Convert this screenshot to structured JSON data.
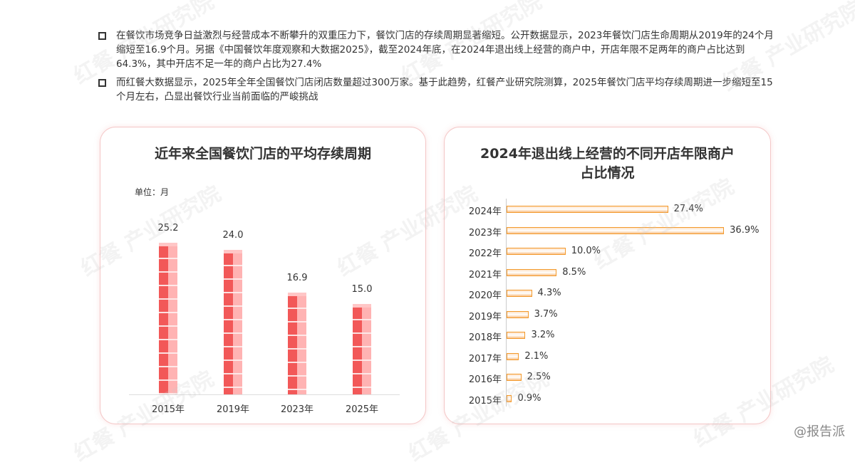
{
  "paragraphs": [
    "在餐饮市场竞争日益激烈与经营成本不断攀升的双重压力下，餐饮门店的存续周期显著缩短。公开数据显示，2023年餐饮门店生命周期从2019年的24个月缩短至16.9个月。另据《中国餐饮年度观察和大数据2025》，截至2024年底，在2024年退出线上经营的商户中，开店年限不足两年的商户占比达到64.3%，其中开店不足一年的商户占比为27.4%",
    "而红餐大数据显示，2025年全年全国餐饮门店闭店数量超过300万家。基于此趋势，红餐产业研究院测算，2025年餐饮门店平均存续周期进一步缩短至15个月左右，凸显出餐饮行业当前面临的严峻挑战"
  ],
  "watermark": "红餐 产业研究院",
  "source_badge": "@报告派",
  "chart_data": [
    {
      "type": "bar",
      "title": "近年来全国餐饮门店的平均存续周期",
      "unit_label": "单位：月",
      "categories": [
        "2015年",
        "2019年",
        "2023年",
        "2025年"
      ],
      "values": [
        25.2,
        24.0,
        16.9,
        15.0
      ],
      "value_labels": [
        "25.2",
        "24.0",
        "16.9",
        "15.0"
      ],
      "ylim": [
        0,
        26
      ],
      "colors": {
        "left": "#f25858",
        "right": "#ffb3b3"
      }
    },
    {
      "type": "bar",
      "orientation": "horizontal",
      "title_lines": [
        "2024年退出线上经营的不同开店年限商户",
        "占比情况"
      ],
      "categories": [
        "2024年",
        "2023年",
        "2022年",
        "2021年",
        "2020年",
        "2019年",
        "2018年",
        "2017年",
        "2016年",
        "2015年"
      ],
      "values": [
        27.4,
        36.9,
        10.0,
        8.5,
        4.3,
        3.7,
        3.2,
        2.1,
        2.5,
        0.9
      ],
      "value_labels": [
        "27.4%",
        "36.9%",
        "10.0%",
        "8.5%",
        "4.3%",
        "3.7%",
        "3.2%",
        "2.1%",
        "2.5%",
        "0.9%"
      ],
      "xlim": [
        0,
        40
      ],
      "colors": {
        "bar": "#f39a2c"
      }
    }
  ]
}
